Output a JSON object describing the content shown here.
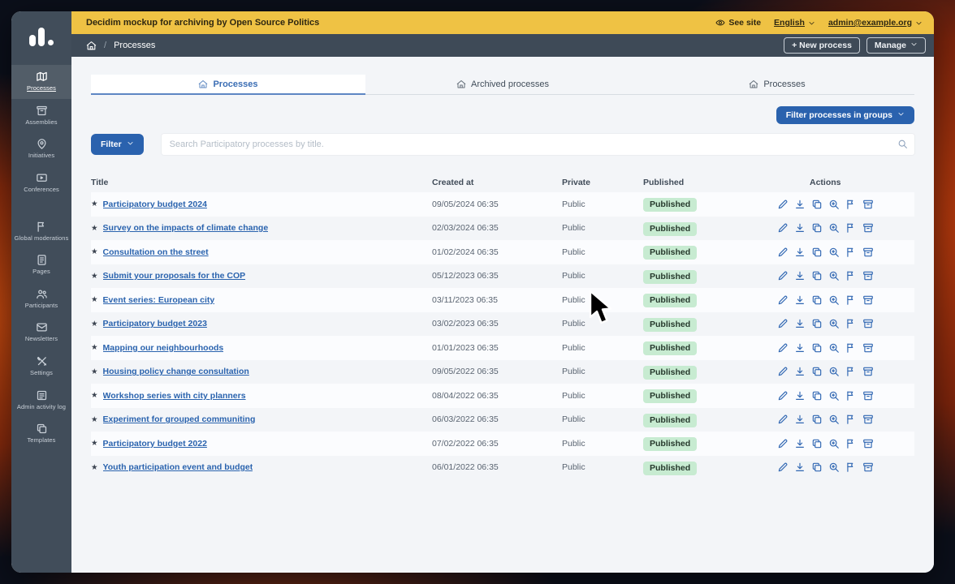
{
  "admin_bar": {
    "title": "Decidim mockup for archiving by Open Source Politics",
    "see_site": "See site",
    "language": "English",
    "user_email": "admin@example.org"
  },
  "topbar": {
    "breadcrumb": "Processes",
    "new_process_label": "+ New process",
    "manage_label": "Manage"
  },
  "sidebar": {
    "items": [
      {
        "label": "Processes",
        "icon": "map",
        "active": true
      },
      {
        "label": "Assemblies",
        "icon": "bank",
        "active": false
      },
      {
        "label": "Initiatives",
        "icon": "pin",
        "active": false
      },
      {
        "label": "Conferences",
        "icon": "video",
        "active": false,
        "gap_after": true
      },
      {
        "label": "Global moderations",
        "icon": "flag",
        "active": false
      },
      {
        "label": "Pages",
        "icon": "file",
        "active": false
      },
      {
        "label": "Participants",
        "icon": "users",
        "active": false
      },
      {
        "label": "Newsletters",
        "icon": "mail",
        "active": false
      },
      {
        "label": "Settings",
        "icon": "tools",
        "active": false
      },
      {
        "label": "Admin activity log",
        "icon": "list",
        "active": false
      },
      {
        "label": "Templates",
        "icon": "copy",
        "active": false
      }
    ]
  },
  "tabs": [
    {
      "label": "Processes",
      "icon": "process",
      "active": true
    },
    {
      "label": "Archived processes",
      "icon": "process",
      "active": false
    },
    {
      "label": "Processes",
      "icon": "process",
      "active": false
    }
  ],
  "filters": {
    "groups_button_label": "Filter processes in groups",
    "filter_button_label": "Filter",
    "search_placeholder": "Search Participatory processes by title."
  },
  "table": {
    "headers": {
      "title": "Title",
      "created_at": "Created at",
      "private": "Private",
      "published": "Published",
      "actions": "Actions"
    },
    "star_glyph": "★",
    "row_action_icons": [
      "pencil",
      "download",
      "copy",
      "zoom-in",
      "flag",
      "archive"
    ],
    "rows": [
      {
        "title": "Participatory budget 2024",
        "created_at": "09/05/2024 06:35",
        "private": "Public",
        "status": "Published"
      },
      {
        "title": "Survey on the impacts of climate change",
        "created_at": "02/03/2024 06:35",
        "private": "Public",
        "status": "Published"
      },
      {
        "title": "Consultation on the street",
        "created_at": "01/02/2024 06:35",
        "private": "Public",
        "status": "Published"
      },
      {
        "title": "Submit your proposals for the COP",
        "created_at": "05/12/2023 06:35",
        "private": "Public",
        "status": "Published"
      },
      {
        "title": "Event series: European city",
        "created_at": "03/11/2023 06:35",
        "private": "Public",
        "status": "Published"
      },
      {
        "title": "Participatory budget 2023",
        "created_at": "03/02/2023 06:35",
        "private": "Public",
        "status": "Published"
      },
      {
        "title": "Mapping our neighbourhoods",
        "created_at": "01/01/2023 06:35",
        "private": "Public",
        "status": "Published"
      },
      {
        "title": "Housing policy change consultation",
        "created_at": "09/05/2022 06:35",
        "private": "Public",
        "status": "Published"
      },
      {
        "title": "Workshop series with city planners",
        "created_at": "08/04/2022 06:35",
        "private": "Public",
        "status": "Published"
      },
      {
        "title": "Experiment for grouped communiting",
        "created_at": "06/03/2022 06:35",
        "private": "Public",
        "status": "Published"
      },
      {
        "title": "Participatory budget 2022",
        "created_at": "07/02/2022 06:35",
        "private": "Public",
        "status": "Published"
      },
      {
        "title": "Youth participation event and budget",
        "created_at": "06/01/2022 06:35",
        "private": "Public",
        "status": "Published"
      }
    ]
  },
  "colors": {
    "accent_blue": "#2a62ae",
    "admin_bar_yellow": "#efc244",
    "sidebar_dark": "#414d5a",
    "badge_green_bg": "#c7ebd1",
    "content_bg": "#f3f5f8"
  }
}
